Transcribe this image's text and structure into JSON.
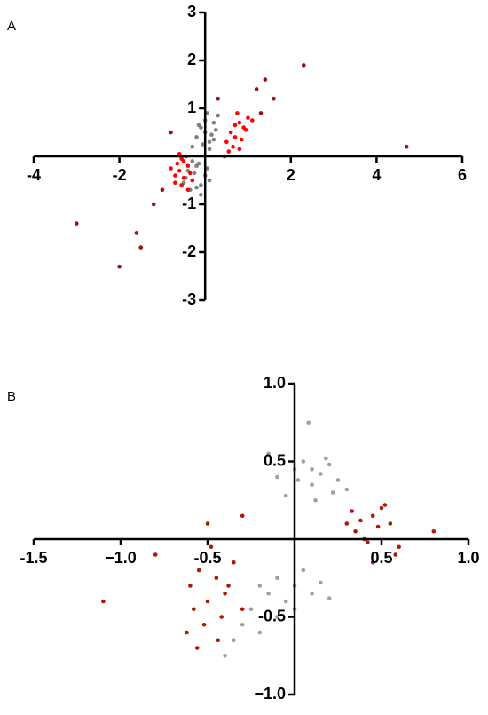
{
  "chart_data": [
    {
      "type": "scatter",
      "title": "A",
      "xlim": [
        -4,
        6
      ],
      "ylim": [
        -3,
        3
      ],
      "xticks": [
        -4,
        -2,
        2,
        4,
        6
      ],
      "yticks": [
        -3,
        -2,
        -1,
        1,
        2,
        3
      ],
      "series": [
        {
          "color": "#808080",
          "x": [
            -0.2,
            -0.1,
            0.0,
            0.1,
            0.2,
            -0.3,
            0.05,
            0.15,
            -0.05,
            0.25,
            0.3,
            -0.15,
            0.1,
            0.0,
            0.2,
            -0.4,
            -0.3,
            -0.2,
            -0.1,
            0.0,
            -0.5,
            -0.35,
            -0.25,
            -0.15,
            0.05,
            -0.45,
            -0.3,
            -0.1,
            0.1,
            -0.2
          ],
          "values": [
            0.4,
            0.6,
            0.5,
            0.3,
            0.7,
            0.2,
            0.9,
            0.45,
            0.25,
            0.55,
            0.85,
            0.65,
            0.15,
            0.75,
            0.35,
            -0.3,
            -0.5,
            -0.2,
            -0.6,
            -0.4,
            -0.55,
            -0.7,
            -0.35,
            -0.15,
            -0.25,
            -0.45,
            -0.1,
            -0.8,
            -0.5,
            -0.65
          ]
        },
        {
          "color": "#ff0000",
          "x": [
            0.5,
            0.6,
            0.7,
            0.8,
            0.9,
            1.0,
            0.55,
            0.65,
            0.75,
            0.85,
            0.95,
            0.45,
            1.1,
            0.7,
            0.8,
            -0.4,
            -0.5,
            -0.6,
            -0.7,
            -0.3,
            -0.45,
            -0.55,
            -0.65,
            -0.35,
            -0.5,
            -0.6,
            -0.8,
            -0.4,
            -0.7,
            -0.55
          ],
          "values": [
            0.3,
            0.5,
            0.4,
            0.7,
            0.6,
            0.8,
            0.1,
            0.2,
            0.9,
            0.35,
            0.55,
            0.0,
            0.75,
            0.65,
            0.15,
            -0.2,
            -0.1,
            -0.3,
            -0.4,
            -0.5,
            0.0,
            -0.6,
            -0.15,
            -0.35,
            -0.45,
            0.05,
            -0.25,
            -0.7,
            -0.55,
            -0.05
          ]
        },
        {
          "color": "#a01010",
          "x": [
            2.3,
            4.7,
            -3.0,
            -2.0,
            -1.6,
            1.4,
            -0.8,
            1.2,
            1.6,
            -1.2,
            -1.0,
            0.3,
            1.3,
            -1.5
          ],
          "values": [
            1.9,
            0.2,
            -1.4,
            -2.3,
            -1.6,
            1.6,
            0.5,
            1.4,
            1.2,
            -1.0,
            -0.7,
            1.2,
            0.9,
            -1.9
          ]
        }
      ]
    },
    {
      "type": "scatter",
      "title": "B",
      "xlim": [
        -1.5,
        1.0
      ],
      "ylim": [
        -1.0,
        1.0
      ],
      "xticks": [
        -1.5,
        {
          "value": -1,
          "label": "−1.0"
        },
        -0.5,
        0.5,
        {
          "value": 1,
          "label": "1.0"
        }
      ],
      "yticks": [
        {
          "value": -1,
          "label": "−1.0"
        },
        -0.5,
        0.5,
        {
          "value": 1,
          "label": "1.0"
        }
      ],
      "series": [
        {
          "color": "#a0a0a0",
          "x": [
            -0.15,
            -0.1,
            0.0,
            0.05,
            0.1,
            0.15,
            0.2,
            0.25,
            0.3,
            0.08,
            0.12,
            0.18,
            0.22,
            -0.05,
            0.02,
            0.1,
            -0.2,
            -0.15,
            -0.1,
            -0.05,
            0.0,
            0.05,
            0.1,
            0.15,
            -0.25,
            -0.3,
            -0.35,
            -0.1,
            0.0,
            0.2,
            -0.4,
            -0.2
          ],
          "values": [
            0.55,
            0.4,
            0.45,
            0.5,
            0.35,
            0.42,
            0.48,
            0.38,
            0.32,
            0.75,
            0.25,
            0.52,
            0.3,
            0.28,
            0.38,
            0.45,
            -0.3,
            -0.35,
            -0.25,
            -0.4,
            -0.3,
            -0.2,
            -0.35,
            -0.28,
            -0.45,
            -0.55,
            -0.65,
            -0.5,
            -0.45,
            -0.38,
            -0.75,
            -0.6
          ]
        },
        {
          "color": "#b01800",
          "x": [
            0.3,
            0.35,
            0.4,
            0.45,
            0.5,
            0.55,
            0.6,
            0.38,
            0.42,
            0.48,
            0.52,
            0.33,
            0.58,
            -0.6,
            -0.55,
            -0.5,
            -0.45,
            -0.4,
            -0.35,
            -0.3,
            -0.52,
            -0.48,
            -0.42,
            -0.38,
            -0.58,
            -0.62,
            -0.44,
            -0.5,
            -0.56,
            -1.1,
            0.8,
            -0.8,
            -0.3,
            0.45
          ],
          "values": [
            0.1,
            0.05,
            0.0,
            0.15,
            0.2,
            0.1,
            -0.05,
            0.12,
            -0.02,
            0.08,
            0.22,
            0.18,
            -0.1,
            -0.3,
            -0.2,
            -0.4,
            -0.25,
            -0.35,
            -0.15,
            -0.45,
            -0.55,
            -0.05,
            -0.5,
            -0.3,
            -0.45,
            -0.6,
            -0.65,
            0.1,
            -0.7,
            -0.4,
            0.05,
            -0.1,
            0.15,
            -0.15
          ]
        }
      ]
    }
  ]
}
